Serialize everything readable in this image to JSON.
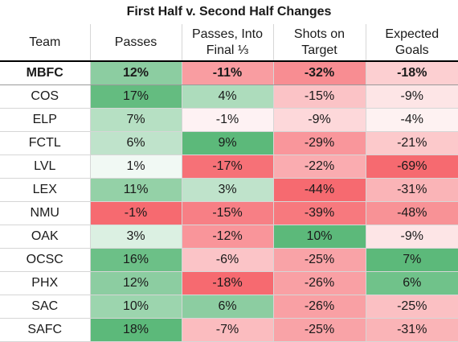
{
  "chart_data": {
    "type": "table",
    "title": "First Half v. Second Half Changes",
    "columns": [
      "Team",
      "Passes",
      "Passes, Into Final ⅓",
      "Shots on Target",
      "Expected Goals"
    ],
    "rows": [
      {
        "team": "MBFC",
        "values": [
          12,
          -11,
          -32,
          -18
        ],
        "bold": true
      },
      {
        "team": "COS",
        "values": [
          17,
          4,
          -15,
          -9
        ]
      },
      {
        "team": "ELP",
        "values": [
          7,
          -1,
          -9,
          -4
        ]
      },
      {
        "team": "FCTL",
        "values": [
          6,
          9,
          -29,
          -21
        ]
      },
      {
        "team": "LVL",
        "values": [
          1,
          -17,
          -22,
          -69
        ]
      },
      {
        "team": "LEX",
        "values": [
          11,
          3,
          -44,
          -31
        ]
      },
      {
        "team": "NMU",
        "values": [
          -1,
          -15,
          -39,
          -48
        ]
      },
      {
        "team": "OAK",
        "values": [
          3,
          -12,
          10,
          -9
        ]
      },
      {
        "team": "OCSC",
        "values": [
          16,
          -6,
          -25,
          7
        ]
      },
      {
        "team": "PHX",
        "values": [
          12,
          -18,
          -26,
          6
        ]
      },
      {
        "team": "SAC",
        "values": [
          10,
          6,
          -26,
          -25
        ]
      },
      {
        "team": "SAFC",
        "values": [
          18,
          -7,
          -25,
          -31
        ]
      }
    ],
    "value_suffix": "%",
    "colors": {
      "positive_strong": "#5cb97a",
      "neutral": "#ffffff",
      "negative_strong": "#f66a70"
    }
  }
}
